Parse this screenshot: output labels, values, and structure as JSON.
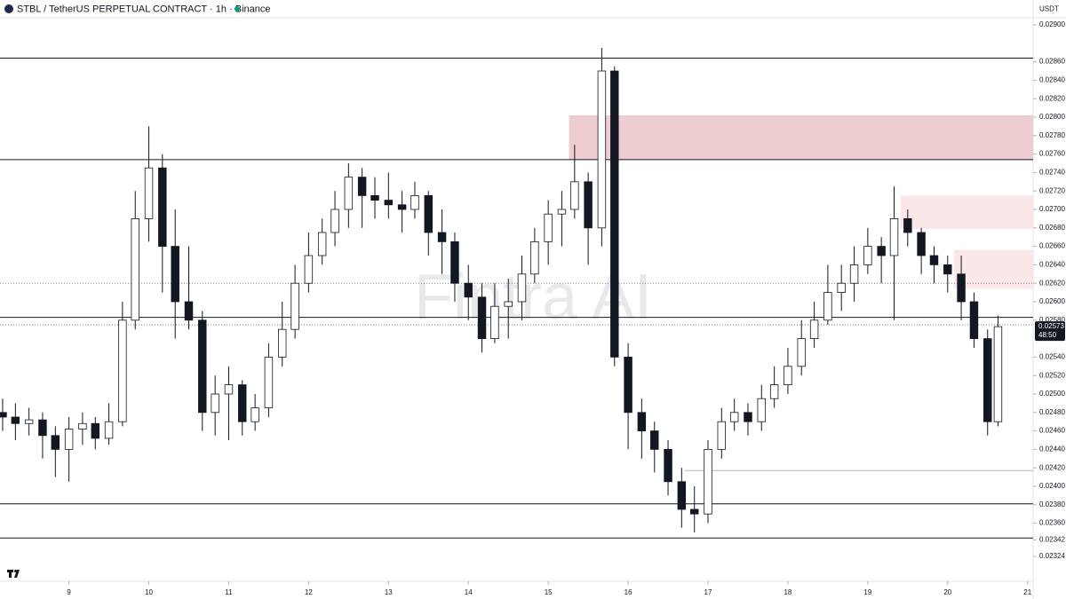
{
  "chart_data": {
    "type": "candlestick",
    "title": "STBL / TetherUS PERPETUAL CONTRACT · 1h · Binance",
    "currency": "USDT",
    "watermark": "Fintra AI",
    "last_price": 0.02573,
    "countdown": "48:50",
    "x": [
      8.17,
      8.33,
      8.5,
      8.67,
      8.83,
      9.0,
      9.17,
      9.33,
      9.5,
      9.67,
      9.83,
      10.0,
      10.17,
      10.33,
      10.5,
      10.67,
      10.83,
      11.0,
      11.17,
      11.33,
      11.5,
      11.67,
      11.83,
      12.0,
      12.17,
      12.33,
      12.5,
      12.67,
      12.83,
      13.0,
      13.17,
      13.33,
      13.5,
      13.67,
      13.83,
      14.0,
      14.17,
      14.33,
      14.5,
      14.67,
      14.83,
      15.0,
      15.17,
      15.33,
      15.5,
      15.67,
      15.83,
      16.0,
      16.17,
      16.33,
      16.5,
      16.67,
      16.83,
      17.0,
      17.17,
      17.33,
      17.5,
      17.67,
      17.83,
      18.0,
      18.17,
      18.33,
      18.5,
      18.67,
      18.83,
      19.0,
      19.17,
      19.33,
      19.5,
      19.67,
      19.83,
      20.0,
      20.17,
      20.33,
      20.5,
      20.63
    ],
    "open": [
      0.0248,
      0.02475,
      0.02468,
      0.02472,
      0.02455,
      0.0244,
      0.02462,
      0.02468,
      0.02452,
      0.0247,
      0.0258,
      0.0269,
      0.02745,
      0.0266,
      0.026,
      0.0258,
      0.0248,
      0.025,
      0.0251,
      0.0247,
      0.02485,
      0.0254,
      0.0257,
      0.0262,
      0.0265,
      0.02675,
      0.027,
      0.02735,
      0.02715,
      0.0271,
      0.02705,
      0.027,
      0.02715,
      0.02675,
      0.02665,
      0.0262,
      0.02605,
      0.0256,
      0.02595,
      0.026,
      0.0263,
      0.02665,
      0.02695,
      0.027,
      0.0273,
      0.0268,
      0.0285,
      0.0254,
      0.0248,
      0.0246,
      0.0244,
      0.02405,
      0.02375,
      0.0237,
      0.0244,
      0.0247,
      0.0248,
      0.0247,
      0.02495,
      0.0251,
      0.0253,
      0.0256,
      0.0258,
      0.0261,
      0.0262,
      0.0264,
      0.0266,
      0.0265,
      0.0269,
      0.02675,
      0.0265,
      0.0264,
      0.0263,
      0.026,
      0.0256,
      0.0247
    ],
    "high": [
      0.02495,
      0.0249,
      0.02485,
      0.0248,
      0.02465,
      0.02475,
      0.0248,
      0.02475,
      0.0249,
      0.026,
      0.0272,
      0.0279,
      0.0276,
      0.027,
      0.0266,
      0.0259,
      0.0252,
      0.0253,
      0.02515,
      0.025,
      0.02555,
      0.026,
      0.0264,
      0.02675,
      0.0269,
      0.0272,
      0.0275,
      0.02745,
      0.02735,
      0.0274,
      0.0272,
      0.0273,
      0.0272,
      0.027,
      0.02675,
      0.0264,
      0.0262,
      0.0262,
      0.02625,
      0.0265,
      0.0268,
      0.0271,
      0.0272,
      0.0277,
      0.0274,
      0.02875,
      0.02855,
      0.02555,
      0.02495,
      0.0247,
      0.0245,
      0.0242,
      0.024,
      0.0245,
      0.02485,
      0.02495,
      0.0249,
      0.0251,
      0.0253,
      0.0255,
      0.0258,
      0.026,
      0.0264,
      0.0264,
      0.0266,
      0.0268,
      0.0267,
      0.02725,
      0.027,
      0.0268,
      0.0266,
      0.0265,
      0.0265,
      0.0261,
      0.0257,
      0.02585
    ],
    "low": [
      0.0246,
      0.0245,
      0.02455,
      0.0243,
      0.0241,
      0.02405,
      0.02445,
      0.0244,
      0.02445,
      0.02465,
      0.0257,
      0.02665,
      0.0261,
      0.0256,
      0.0257,
      0.0246,
      0.02455,
      0.0245,
      0.02455,
      0.0246,
      0.02475,
      0.0253,
      0.0256,
      0.0261,
      0.0264,
      0.0266,
      0.0268,
      0.0268,
      0.0269,
      0.0269,
      0.02675,
      0.0269,
      0.0265,
      0.0263,
      0.026,
      0.0258,
      0.02545,
      0.02555,
      0.0256,
      0.0258,
      0.0262,
      0.0264,
      0.0266,
      0.0269,
      0.0264,
      0.0266,
      0.0253,
      0.0244,
      0.0243,
      0.02415,
      0.0239,
      0.02355,
      0.0235,
      0.0236,
      0.0243,
      0.0246,
      0.02455,
      0.0246,
      0.02485,
      0.025,
      0.0252,
      0.0255,
      0.02575,
      0.0259,
      0.026,
      0.0263,
      0.0262,
      0.0258,
      0.0266,
      0.0263,
      0.0262,
      0.0261,
      0.0258,
      0.0255,
      0.02455,
      0.02465
    ],
    "close": [
      0.02475,
      0.02468,
      0.02472,
      0.02455,
      0.0244,
      0.02462,
      0.02468,
      0.02452,
      0.0247,
      0.0258,
      0.0269,
      0.02745,
      0.0266,
      0.026,
      0.0258,
      0.0248,
      0.025,
      0.0251,
      0.0247,
      0.02485,
      0.0254,
      0.0257,
      0.0262,
      0.0265,
      0.02675,
      0.027,
      0.02735,
      0.02715,
      0.0271,
      0.02705,
      0.027,
      0.02715,
      0.02675,
      0.02665,
      0.0262,
      0.02605,
      0.0256,
      0.02595,
      0.026,
      0.0263,
      0.02665,
      0.02695,
      0.027,
      0.0273,
      0.0268,
      0.0285,
      0.0254,
      0.0248,
      0.0246,
      0.0244,
      0.02405,
      0.02375,
      0.0237,
      0.0244,
      0.0247,
      0.0248,
      0.0247,
      0.02495,
      0.0251,
      0.0253,
      0.0256,
      0.0258,
      0.0261,
      0.0262,
      0.0264,
      0.0266,
      0.0265,
      0.0269,
      0.02675,
      0.0265,
      0.0264,
      0.0263,
      0.026,
      0.0256,
      0.0247,
      0.02573
    ],
    "zones": [
      {
        "top": 0.02802,
        "bottom": 0.02754,
        "x_start": 15.26,
        "color": "#edcdd0"
      },
      {
        "top": 0.02715,
        "bottom": 0.02679,
        "x_start": 19.41,
        "color": "#fbe6e8"
      },
      {
        "top": 0.02656,
        "bottom": 0.02614,
        "x_start": 20.08,
        "color": "#fbe6e8"
      }
    ],
    "levels": [
      0.02864,
      0.02754,
      0.02583,
      0.02381,
      0.02344
    ],
    "short_levels": [
      {
        "value": 0.02417,
        "x_start": 16.71
      }
    ],
    "dotted_levels": [
      0.0262,
      0.02575
    ],
    "xlim": [
      8.137,
      21.07
    ],
    "xticks": [
      9,
      10,
      11,
      12,
      13,
      14,
      15,
      16,
      17,
      18,
      19,
      20,
      21
    ],
    "ylim": [
      0.022971,
      0.029077
    ],
    "yticks": [
      {
        "value": 0.029,
        "label": "0.02900"
      },
      {
        "value": 0.0286,
        "label": "0.02860"
      },
      {
        "value": 0.0284,
        "label": "0.02840"
      },
      {
        "value": 0.0282,
        "label": "0.02820"
      },
      {
        "value": 0.028,
        "label": "0.02800"
      },
      {
        "value": 0.0278,
        "label": "0.02780"
      },
      {
        "value": 0.0276,
        "label": "0.02760"
      },
      {
        "value": 0.0274,
        "label": "0.02740"
      },
      {
        "value": 0.0272,
        "label": "0.02720"
      },
      {
        "value": 0.027,
        "label": "0.02700"
      },
      {
        "value": 0.0268,
        "label": "0.02680"
      },
      {
        "value": 0.0266,
        "label": "0.02660"
      },
      {
        "value": 0.0264,
        "label": "0.02640"
      },
      {
        "value": 0.0262,
        "label": "0.02620"
      },
      {
        "value": 0.026,
        "label": "0.02600"
      },
      {
        "value": 0.0258,
        "label": "0.02580"
      },
      {
        "value": 0.0254,
        "label": "0.02540"
      },
      {
        "value": 0.0252,
        "label": "0.02520"
      },
      {
        "value": 0.025,
        "label": "0.02500"
      },
      {
        "value": 0.0248,
        "label": "0.02480"
      },
      {
        "value": 0.0246,
        "label": "0.02460"
      },
      {
        "value": 0.0244,
        "label": "0.02440"
      },
      {
        "value": 0.0242,
        "label": "0.02420"
      },
      {
        "value": 0.024,
        "label": "0.02400"
      },
      {
        "value": 0.0238,
        "label": "0.02380"
      },
      {
        "value": 0.0236,
        "label": "0.02360"
      },
      {
        "value": 0.02342,
        "label": "0.02342"
      },
      {
        "value": 0.02324,
        "label": "0.02324"
      }
    ],
    "grid": false
  }
}
